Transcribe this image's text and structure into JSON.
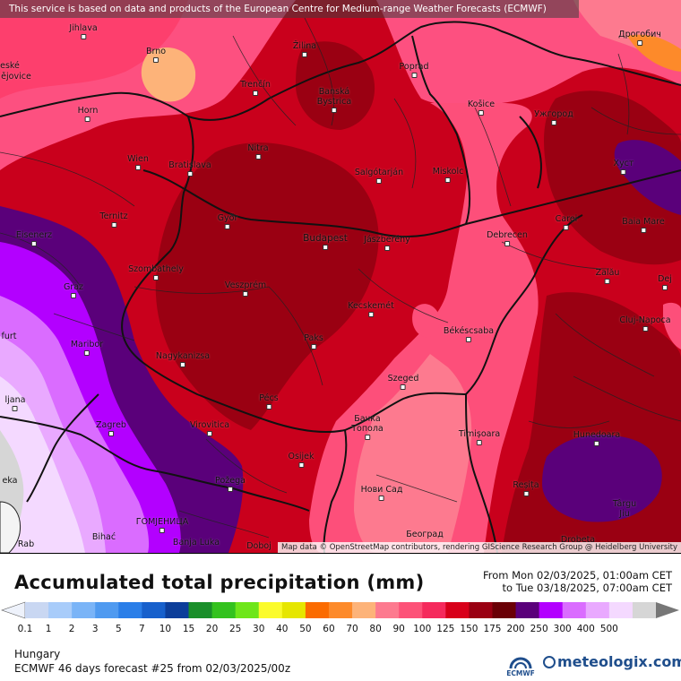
{
  "notice": "This service is based on data and products of the European Centre for Medium-range Weather Forecasts (ECMWF)",
  "attribution": "Map data © OpenStreetMap contributors, rendering GIScience Research Group @ Heidelberg University",
  "cities": [
    {
      "id": "jihlava",
      "name": "Jihlava"
    },
    {
      "id": "brno",
      "name": "Brno"
    },
    {
      "id": "zilina",
      "name": "Žilina"
    },
    {
      "id": "poprad",
      "name": "Poprad"
    },
    {
      "id": "drohobych",
      "name": "Дрогобич"
    },
    {
      "id": "ceske",
      "name": "eské"
    },
    {
      "id": "jovice",
      "name": "ějovice"
    },
    {
      "id": "trencin",
      "name": "Trenčín"
    },
    {
      "id": "banska",
      "name": "Banská"
    },
    {
      "id": "bystrica",
      "name": "Bystrica"
    },
    {
      "id": "kosice",
      "name": "Košice"
    },
    {
      "id": "uzhhorod",
      "name": "Ужгород"
    },
    {
      "id": "horn",
      "name": "Horn"
    },
    {
      "id": "nitra",
      "name": "Nitra"
    },
    {
      "id": "wien",
      "name": "Wien"
    },
    {
      "id": "bratislava",
      "name": "Bratislava"
    },
    {
      "id": "salgotarjan",
      "name": "Salgótarján"
    },
    {
      "id": "miskolc",
      "name": "Miskolc"
    },
    {
      "id": "khust",
      "name": "Хуст"
    },
    {
      "id": "ternitz",
      "name": "Ternitz"
    },
    {
      "id": "gyor",
      "name": "Győr"
    },
    {
      "id": "carei",
      "name": "Carei"
    },
    {
      "id": "baiamare",
      "name": "Baia Mare"
    },
    {
      "id": "eisenerz",
      "name": "Eisenerz"
    },
    {
      "id": "budapest",
      "name": "Budapest"
    },
    {
      "id": "jaszbereny",
      "name": "Jászberény"
    },
    {
      "id": "debrecen",
      "name": "Debrecen"
    },
    {
      "id": "szombathely",
      "name": "Szombathely"
    },
    {
      "id": "zalau",
      "name": "Zalău"
    },
    {
      "id": "graz",
      "name": "Graz"
    },
    {
      "id": "veszprem",
      "name": "Veszprém"
    },
    {
      "id": "dej",
      "name": "Dej"
    },
    {
      "id": "kecskemet",
      "name": "Kecskemét"
    },
    {
      "id": "cluj",
      "name": "Cluj-Napoca"
    },
    {
      "id": "furt",
      "name": "furt"
    },
    {
      "id": "bekescsaba",
      "name": "Békéscsaba"
    },
    {
      "id": "paks",
      "name": "Paks"
    },
    {
      "id": "maribor",
      "name": "Maribor"
    },
    {
      "id": "nagykanizsa",
      "name": "Nagykanizsa"
    },
    {
      "id": "szeged",
      "name": "Szeged"
    },
    {
      "id": "ljubljana",
      "name": "ljana"
    },
    {
      "id": "pecs",
      "name": "Pécs"
    },
    {
      "id": "backa",
      "name": "Бачка"
    },
    {
      "id": "topola",
      "name": "Топола"
    },
    {
      "id": "zagreb",
      "name": "Zagreb"
    },
    {
      "id": "virovitica",
      "name": "Virovitica"
    },
    {
      "id": "timisoara",
      "name": "Timișoara"
    },
    {
      "id": "hunedoara",
      "name": "Hunedoara"
    },
    {
      "id": "osijek",
      "name": "Osijek"
    },
    {
      "id": "pozega",
      "name": "Požega"
    },
    {
      "id": "resita",
      "name": "Reșița"
    },
    {
      "id": "novisad",
      "name": "Нови Сад"
    },
    {
      "id": "targu",
      "name": "Târgu"
    },
    {
      "id": "jiu",
      "name": "Jiu"
    },
    {
      "id": "gomjenica",
      "name": "ГОМЈЕНИЦА"
    },
    {
      "id": "bihac",
      "name": "Bihać"
    },
    {
      "id": "banjaluka",
      "name": "Banja Luka"
    },
    {
      "id": "doboj",
      "name": "Doboj"
    },
    {
      "id": "beograd",
      "name": "Београд"
    },
    {
      "id": "drobeta",
      "name": "Drobeta"
    },
    {
      "id": "rab",
      "name": "Rab"
    },
    {
      "id": "eka",
      "name": "eka"
    }
  ],
  "legend": {
    "title": "Accumulated total precipitation (mm)",
    "period_from": "From Mon 02/03/2025, 01:00am CET",
    "period_to": "to Tue 03/18/2025, 07:00am CET",
    "ticks": [
      "0.1",
      "1",
      "2",
      "3",
      "5",
      "7",
      "10",
      "15",
      "20",
      "25",
      "30",
      "40",
      "50",
      "60",
      "70",
      "80",
      "90",
      "100",
      "125",
      "150",
      "175",
      "200",
      "250",
      "300",
      "400",
      "500"
    ],
    "colors": [
      "#c9d7f2",
      "#a8ccfa",
      "#7ab4f7",
      "#4f9af0",
      "#2a7ee8",
      "#1760cc",
      "#0c3e9a",
      "#1a8f2a",
      "#33c21e",
      "#6ee61a",
      "#fbfb2c",
      "#e6e600",
      "#fb6b00",
      "#fd8a2a",
      "#fdb379",
      "#fd7a8f",
      "#fd5278",
      "#f52a5c",
      "#d8001a",
      "#9a0012",
      "#6a0006",
      "#5a007a",
      "#b300ff",
      "#da6cff",
      "#e9a9ff",
      "#f4d9ff",
      "#d6d6d6"
    ],
    "region": "Hungary",
    "model": "ECMWF 46 days forecast #25 from  02/03/2025/00z"
  },
  "logos": {
    "ecmwf": "ECMWF",
    "meteologix": "meteologix.com"
  }
}
